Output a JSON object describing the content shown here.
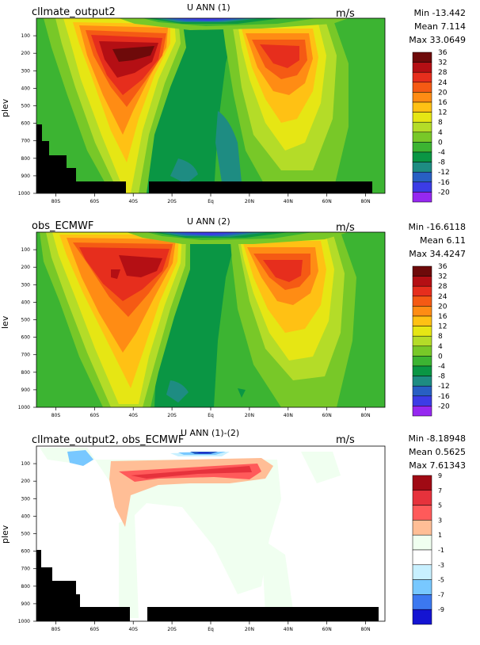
{
  "panels": [
    {
      "case_label": "cllmate_output2",
      "title": "U ANN (1)",
      "units": "m/s",
      "ylabel": "plev",
      "stats": {
        "min": "Min -13.442",
        "mean": "Mean 7.114",
        "max": "Max 33.0649"
      },
      "colorbar": {
        "labels": [
          "36",
          "32",
          "28",
          "24",
          "20",
          "16",
          "12",
          "8",
          "4",
          "0",
          "-4",
          "-8",
          "-12",
          "-16",
          "-20"
        ],
        "colors": [
          "#6e0a0a",
          "#b40f14",
          "#e62e1d",
          "#f55a14",
          "#ff8c14",
          "#ffc114",
          "#e6e614",
          "#b4dc28",
          "#78c828",
          "#3cb432",
          "#0a9644",
          "#1e8c82",
          "#285fc3",
          "#3c3ce6",
          "#9628f0"
        ]
      }
    },
    {
      "case_label": "obs_ECMWF",
      "title": "U ANN (2)",
      "units": "m/s",
      "ylabel": "lev",
      "stats": {
        "min": "Min -16.6118",
        "mean": "Mean 6.11",
        "max": "Max 34.4247"
      },
      "colorbar": {
        "labels": [
          "36",
          "32",
          "28",
          "24",
          "20",
          "16",
          "12",
          "8",
          "4",
          "0",
          "-4",
          "-8",
          "-12",
          "-16",
          "-20"
        ],
        "colors": [
          "#6e0a0a",
          "#b40f14",
          "#e62e1d",
          "#f55a14",
          "#ff8c14",
          "#ffc114",
          "#e6e614",
          "#b4dc28",
          "#78c828",
          "#3cb432",
          "#0a9644",
          "#1e8c82",
          "#285fc3",
          "#3c3ce6",
          "#9628f0"
        ]
      }
    },
    {
      "case_label": "cllmate_output2, obs_ECMWF",
      "title": "U ANN (1)-(2)",
      "units": "m/s",
      "ylabel": "plev",
      "stats": {
        "min": "Min -8.18948",
        "mean": "Mean 0.5625",
        "max": "Max 7.61343"
      },
      "colorbar": {
        "labels": [
          "9",
          "7",
          "5",
          "3",
          "1",
          "-1",
          "-3",
          "-5",
          "-7",
          "-9"
        ],
        "colors": [
          "#a00a14",
          "#e6323c",
          "#ff5a5a",
          "#ffbe96",
          "#f0fff0",
          "#ffffff",
          "#c8f0ff",
          "#78c8ff",
          "#3c78f0",
          "#1414d2"
        ]
      }
    }
  ],
  "chart_data": [
    {
      "type": "heatmap",
      "title": "U ANN (1)",
      "xlabel": "",
      "ylabel": "plev",
      "x_ticks": [
        "80S",
        "60S",
        "40S",
        "20S",
        "Eq",
        "20N",
        "40N",
        "60N",
        "80N"
      ],
      "y_ticks": [
        "100",
        "200",
        "300",
        "400",
        "500",
        "600",
        "700",
        "800",
        "900",
        "1000"
      ],
      "xlim": [
        -90,
        90
      ],
      "ylim": [
        1000,
        0
      ],
      "jets": [
        {
          "lat": -45,
          "plev": 200,
          "value": 33
        },
        {
          "lat": 38,
          "plev": 200,
          "value": 28
        }
      ],
      "tropical_min": {
        "lat": -5,
        "plev": 50,
        "value": -13.4
      },
      "stats": {
        "min": -13.442,
        "mean": 7.114,
        "max": 33.0649
      },
      "units": "m/s"
    },
    {
      "type": "heatmap",
      "title": "U ANN (2)",
      "xlabel": "",
      "ylabel": "lev",
      "x_ticks": [
        "80S",
        "60S",
        "40S",
        "20S",
        "Eq",
        "20N",
        "40N",
        "60N",
        "80N"
      ],
      "y_ticks": [
        "100",
        "200",
        "300",
        "400",
        "500",
        "600",
        "700",
        "800",
        "900",
        "1000"
      ],
      "xlim": [
        -90,
        90
      ],
      "ylim": [
        1000,
        0
      ],
      "jets": [
        {
          "lat": -45,
          "plev": 200,
          "value": 34
        },
        {
          "lat": 35,
          "plev": 200,
          "value": 30
        }
      ],
      "tropical_min": {
        "lat": -5,
        "plev": 50,
        "value": -16.6
      },
      "stats": {
        "min": -16.6118,
        "mean": 6.11,
        "max": 34.4247
      },
      "units": "m/s"
    },
    {
      "type": "heatmap",
      "title": "U ANN (1)-(2)",
      "xlabel": "",
      "ylabel": "plev",
      "x_ticks": [
        "80S",
        "60S",
        "40S",
        "20S",
        "Eq",
        "20N",
        "40N",
        "60N",
        "80N"
      ],
      "y_ticks": [
        "100",
        "200",
        "300",
        "400",
        "500",
        "600",
        "700",
        "800",
        "900",
        "1000"
      ],
      "xlim": [
        -90,
        90
      ],
      "ylim": [
        1000,
        0
      ],
      "positive_band": {
        "lat_range": [
          -45,
          35
        ],
        "plev": 120,
        "value": 6
      },
      "negative_spots": [
        {
          "lat": -70,
          "plev": 70,
          "value": -4
        },
        {
          "lat": -5,
          "plev": 50,
          "value": -8
        }
      ],
      "stats": {
        "min": -8.18948,
        "mean": 0.5625,
        "max": 7.61343
      },
      "units": "m/s"
    }
  ]
}
